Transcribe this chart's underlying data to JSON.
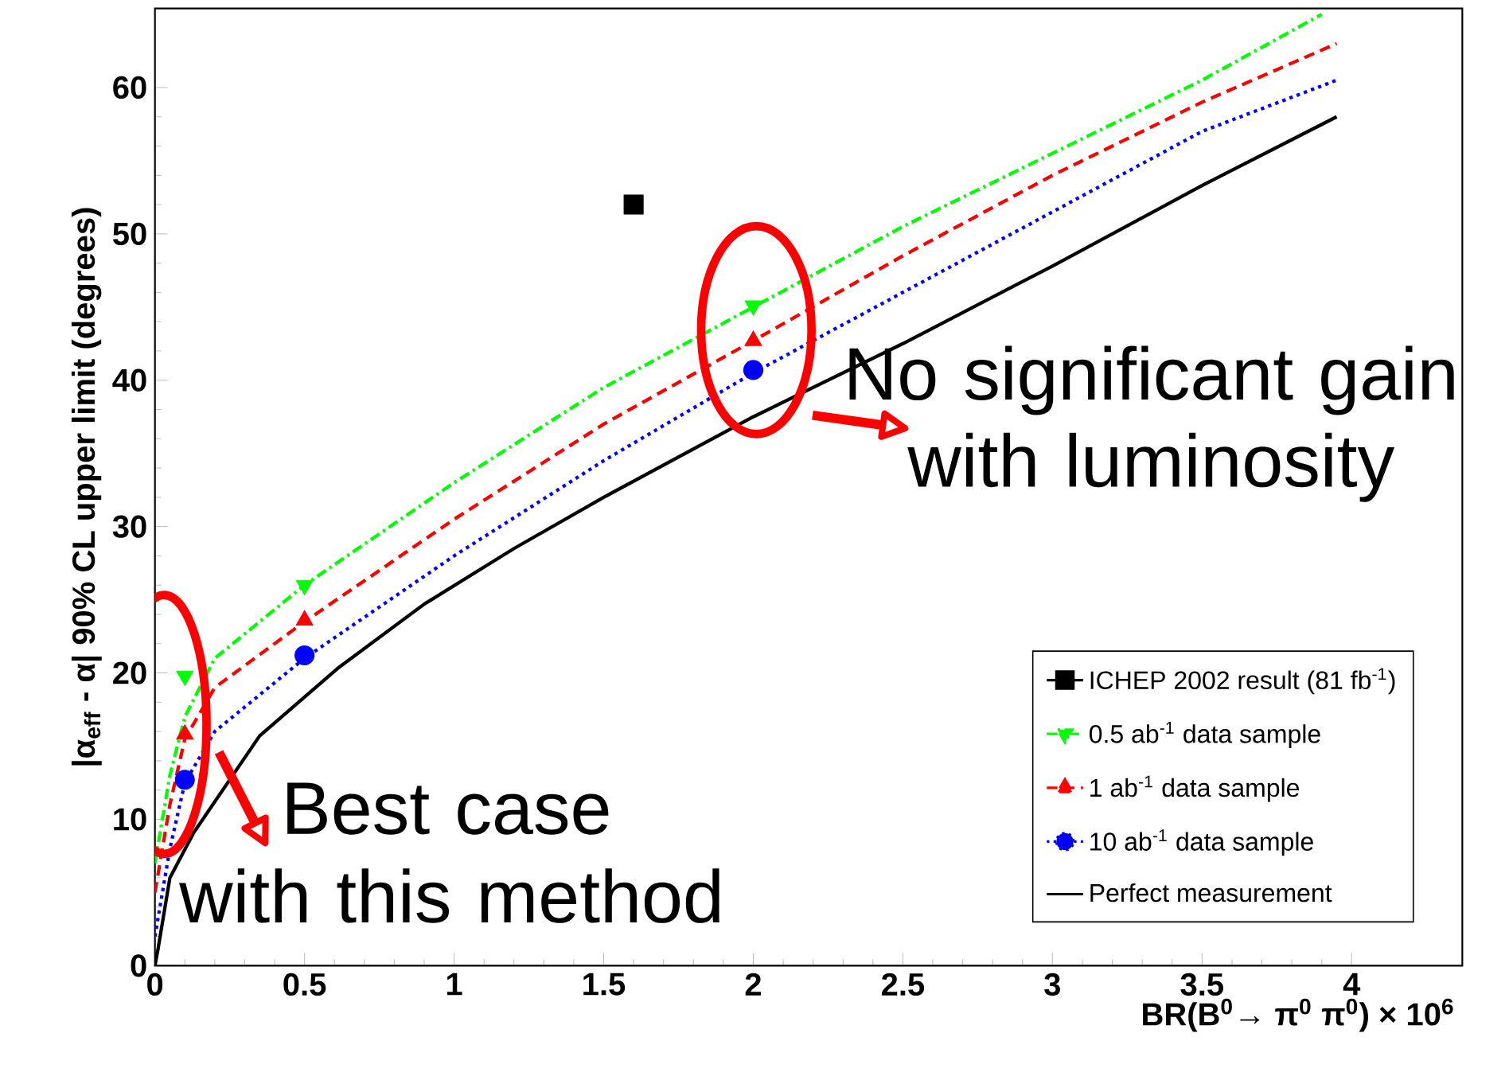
{
  "chart_data": {
    "type": "line",
    "xlabel": "BR(B$^{0}$→ π$^{0}$ π$^{0}$) × 10$^{6}$",
    "ylabel": "|α$_{eff}$ - α| 90% CL upper limit (degrees)",
    "xlim": [
      0,
      4.37
    ],
    "ylim": [
      0,
      65.4
    ],
    "xticks": [
      0,
      0.5,
      1,
      1.5,
      2,
      2.5,
      3,
      3.5,
      4
    ],
    "yticks": [
      0,
      10,
      20,
      30,
      40,
      50,
      60
    ],
    "grid": false,
    "legend": "bottom right",
    "series": [
      {
        "name": "ICHEP 2002 result (81 fb$^{-1}$)",
        "type": "scatter",
        "color": "#000000",
        "marker": "square",
        "x": [
          1.6
        ],
        "values": [
          52
        ]
      },
      {
        "name": "0.5 ab$^{-1}$ data sample",
        "type": "scatter",
        "color": "#00ff00",
        "marker": "triangle-down",
        "line_style": "dashdot",
        "x": [
          0.1,
          0.5,
          2
        ],
        "values": [
          19.8,
          26,
          45.1
        ]
      },
      {
        "name": "1 ab$^{-1}$ data sample",
        "type": "scatter",
        "color": "#ff0000",
        "marker": "triangle",
        "line_style": "dashed",
        "x": [
          0.1,
          0.5,
          2
        ],
        "values": [
          15.8,
          23.6,
          42.7
        ]
      },
      {
        "name": "10 ab$^{-1}$ data sample",
        "type": "scatter",
        "color": "#0000ff",
        "marker": "circle",
        "line_style": "dotted",
        "x": [
          0.1,
          0.5,
          2
        ],
        "values": [
          12.7,
          21.2,
          40.7
        ]
      },
      {
        "name": "Perfect measurement",
        "color": "#000000",
        "line_style": "solid",
        "x": [
          0,
          0.01,
          0.05,
          0.13,
          0.35,
          0.61,
          0.9,
          1.2,
          1.5,
          2,
          2.5,
          3,
          3.5,
          3.95
        ],
        "values": [
          0,
          1.1,
          6,
          9.1,
          15.7,
          20.3,
          24.7,
          28.5,
          32,
          37.5,
          42.5,
          47.8,
          53.3,
          58
        ]
      },
      {
        "color": "#00ff00",
        "line_style": "dashdot",
        "x": [
          0,
          0.05,
          0.1,
          0.2,
          0.5,
          1,
          1.5,
          2,
          2.5,
          3,
          3.5,
          3.9
        ],
        "values": [
          7,
          13,
          17,
          21,
          26,
          33,
          39.5,
          45,
          50.5,
          55.5,
          60.5,
          65
        ]
      },
      {
        "color": "#ff0000",
        "line_style": "dashed",
        "x": [
          0,
          0.05,
          0.1,
          0.2,
          0.5,
          1,
          1.5,
          2,
          2.5,
          3,
          3.5,
          3.95
        ],
        "values": [
          5,
          11,
          15.5,
          19,
          23.5,
          30.5,
          37,
          42.7,
          48.5,
          54,
          59,
          63
        ]
      },
      {
        "color": "#0000ff",
        "line_style": "dotted",
        "x": [
          0,
          0.05,
          0.1,
          0.2,
          0.5,
          1,
          1.5,
          2,
          2.5,
          3,
          3.5,
          3.95
        ],
        "values": [
          2,
          8,
          12.5,
          16,
          21,
          28,
          34.5,
          40.5,
          46,
          51.5,
          57,
          60.5
        ]
      }
    ],
    "annotations": [
      "No significant gain with luminosity",
      "Best case",
      "with this method"
    ]
  }
}
